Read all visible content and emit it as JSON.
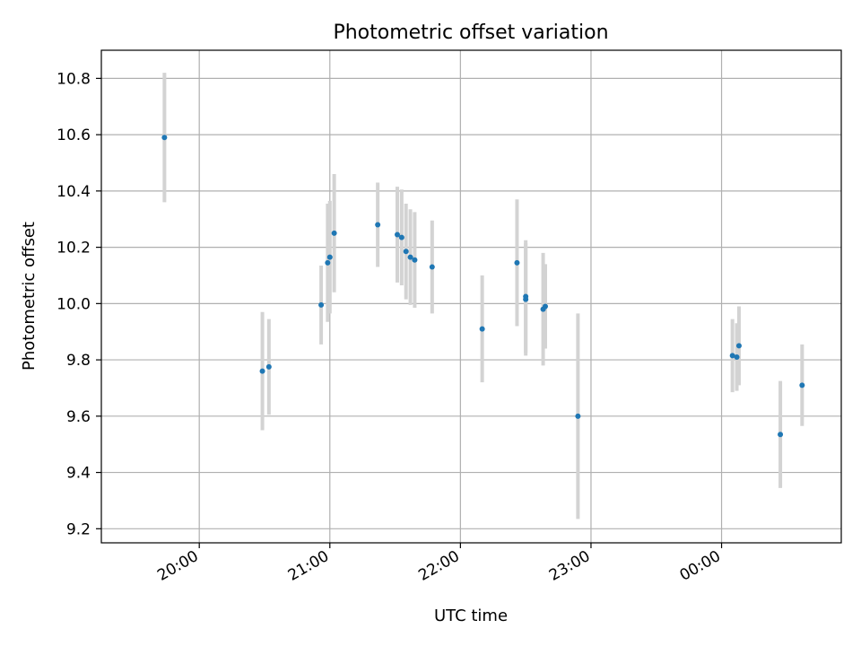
{
  "chart_data": {
    "type": "scatter",
    "title": "Photometric offset variation",
    "xlabel": "UTC time",
    "ylabel": "Photometric offset",
    "x_ticks": [
      "20:00",
      "21:00",
      "22:00",
      "23:00",
      "00:00"
    ],
    "y_ticks": [
      "9.2",
      "9.4",
      "9.6",
      "9.8",
      "10.0",
      "10.2",
      "10.4",
      "10.6",
      "10.8"
    ],
    "ylim": [
      9.15,
      10.9
    ],
    "grid": true,
    "colors": {
      "marker": "#1f77b4",
      "errorbar": "#d3d3d3",
      "grid": "#b0b0b0"
    },
    "points": [
      {
        "time": "19:44",
        "y": 10.59,
        "err": 0.23
      },
      {
        "time": "20:29",
        "y": 9.76,
        "err": 0.21
      },
      {
        "time": "20:32",
        "y": 9.775,
        "err": 0.17
      },
      {
        "time": "20:56",
        "y": 9.995,
        "err": 0.14
      },
      {
        "time": "20:59",
        "y": 10.145,
        "err": 0.21
      },
      {
        "time": "21:00",
        "y": 10.165,
        "err": 0.2
      },
      {
        "time": "21:02",
        "y": 10.25,
        "err": 0.21
      },
      {
        "time": "21:22",
        "y": 10.28,
        "err": 0.15
      },
      {
        "time": "21:31",
        "y": 10.245,
        "err": 0.17
      },
      {
        "time": "21:33",
        "y": 10.235,
        "err": 0.17
      },
      {
        "time": "21:35",
        "y": 10.185,
        "err": 0.17
      },
      {
        "time": "21:37",
        "y": 10.165,
        "err": 0.17
      },
      {
        "time": "21:39",
        "y": 10.155,
        "err": 0.17
      },
      {
        "time": "21:47",
        "y": 10.13,
        "err": 0.165
      },
      {
        "time": "22:10",
        "y": 9.91,
        "err": 0.19
      },
      {
        "time": "22:26",
        "y": 10.145,
        "err": 0.225
      },
      {
        "time": "22:30",
        "y": 10.025,
        "err": 0.2
      },
      {
        "time": "22:30",
        "y": 10.015,
        "err": 0.2
      },
      {
        "time": "22:38",
        "y": 9.98,
        "err": 0.2
      },
      {
        "time": "22:39",
        "y": 9.99,
        "err": 0.15
      },
      {
        "time": "22:54",
        "y": 9.6,
        "err": 0.365
      },
      {
        "time": "00:05",
        "y": 9.815,
        "err": 0.13
      },
      {
        "time": "00:07",
        "y": 9.81,
        "err": 0.12
      },
      {
        "time": "00:08",
        "y": 9.85,
        "err": 0.14
      },
      {
        "time": "00:27",
        "y": 9.535,
        "err": 0.19
      },
      {
        "time": "00:37",
        "y": 9.71,
        "err": 0.145
      }
    ]
  }
}
